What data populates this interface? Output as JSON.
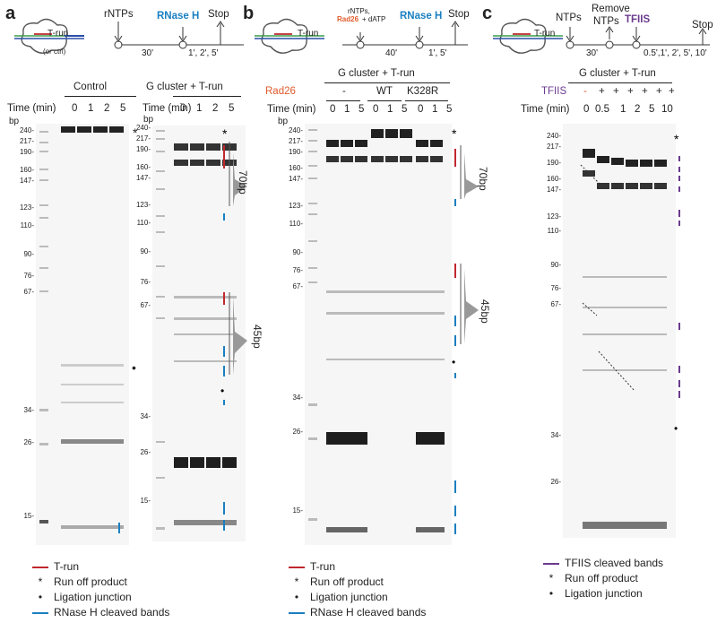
{
  "panels": {
    "a": {
      "letter": "a",
      "schematic": {
        "trun": "T-run",
        "ctrl": "(or ctrl)",
        "ntps": "rNTPs",
        "rnaseh": "RNase H",
        "stop": "Stop",
        "t1": "30'",
        "t2": "1', 2', 5'"
      },
      "gel1": {
        "title": "Control",
        "time_label": "Time (min)",
        "bp": "bp",
        "lanes": [
          "0",
          "1",
          "2",
          "5"
        ],
        "markers": [
          "240-",
          "217-",
          "190-",
          "160-",
          "147-",
          "123-",
          "110-",
          "90-",
          "76-",
          "67-",
          "34-",
          "26-",
          "15-"
        ]
      },
      "gel2": {
        "title": "G cluster + T-run",
        "time_label": "Time (min)",
        "bp": "bp",
        "lanes": [
          "0",
          "1",
          "2",
          "5"
        ],
        "markers": [
          "240-",
          "217-",
          "190-",
          "160-",
          "147-",
          "123-",
          "110-",
          "90-",
          "76-",
          "67-",
          "34-",
          "26-",
          "15-"
        ],
        "bracket_top": "70bp",
        "bracket_mid": "45bp"
      },
      "legend": [
        "T-run",
        "Run off product",
        "Ligation junction",
        "RNase H cleaved bands"
      ]
    },
    "b": {
      "letter": "b",
      "schematic": {
        "trun": "T-run",
        "ntps": "rNTPs,",
        "rad": "Rad26",
        "datp": "+ dATP",
        "rnaseh": "RNase H",
        "stop": "Stop",
        "t1": "40'",
        "t2": "1', 5'"
      },
      "gel": {
        "title": "G cluster + T-run",
        "rad_label": "Rad26",
        "groups": [
          "-",
          "WT",
          "K328R"
        ],
        "time_label": "Time (min)",
        "bp": "bp",
        "lanes": [
          "0",
          "1",
          "5",
          "0",
          "1",
          "5",
          "0",
          "1",
          "5"
        ],
        "markers": [
          "240-",
          "217-",
          "190-",
          "160-",
          "147-",
          "123-",
          "110-",
          "90-",
          "76-",
          "67-",
          "34-",
          "26-",
          "15-"
        ],
        "bracket_top": "70bp",
        "bracket_mid": "45bp"
      },
      "legend": [
        "T-run",
        "Run off product",
        "Ligation junction",
        "RNase H cleaved bands"
      ]
    },
    "c": {
      "letter": "c",
      "schematic": {
        "trun": "T-run",
        "ntps": "NTPs",
        "remove": "Remove",
        "ntps2": "NTPs",
        "tfiis": "TFIIS",
        "stop": "Stop",
        "t1": "30'",
        "t2": "0.5',1', 2', 5', 10'"
      },
      "gel": {
        "title": "G cluster + T-run",
        "tfiis_label": "TFIIS",
        "signs": [
          "-",
          "+",
          "+",
          "+",
          "+",
          "+",
          "+"
        ],
        "time_label": "Time (min)",
        "lanes": [
          "0",
          "0.5",
          "1",
          "2",
          "5",
          "10"
        ],
        "markers": [
          "240-",
          "217-",
          "190-",
          "160-",
          "147-",
          "123-",
          "110-",
          "90-",
          "76-",
          "67-",
          "34-",
          "26-"
        ]
      },
      "legend": [
        "TFIIS cleaved bands",
        "Run off product",
        "Ligation junction"
      ]
    }
  },
  "colors": {
    "trun": "#c0272d",
    "rnaseh": "#1a7fc1",
    "tfiis": "#6b3a8e",
    "rad26": "#e05a2b",
    "green": "#3a9d4a",
    "blue": "#2a4fa8"
  }
}
